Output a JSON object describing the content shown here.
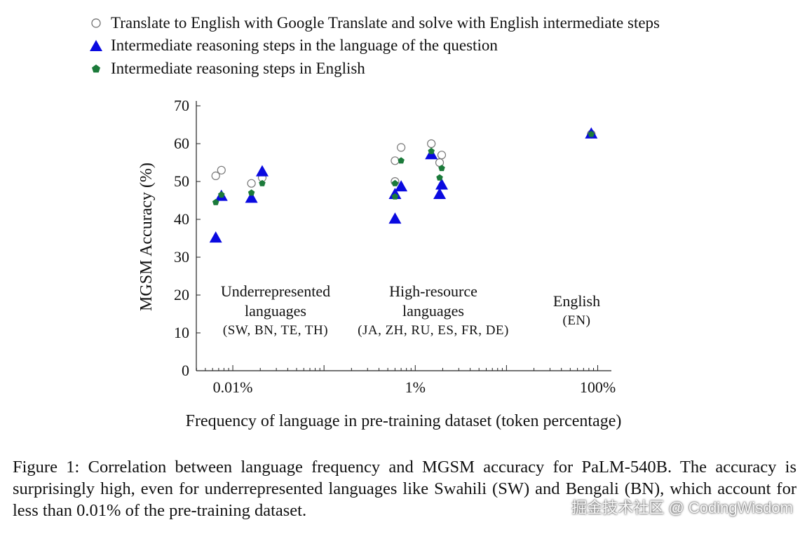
{
  "legend": [
    {
      "label": "Translate to English with Google Translate and solve with English intermediate steps",
      "marker": "open-circle"
    },
    {
      "label": "Intermediate reasoning steps in the language of the question",
      "marker": "triangle"
    },
    {
      "label": "Intermediate reasoning steps in English",
      "marker": "pentagon"
    }
  ],
  "colors": {
    "triangle": "#0a0ae0",
    "pentagon": "#1b7a3a",
    "circle_stroke": "#777777",
    "axis": "#222222"
  },
  "groups": [
    {
      "line1": "Underrepresented",
      "line2": "languages",
      "line3": "(SW, BN, TE, TH)"
    },
    {
      "line1": "High-resource",
      "line2": "languages",
      "line3": "(JA, ZH, RU, ES, FR, DE)"
    },
    {
      "line1": "English",
      "line2": "(EN)",
      "line3": ""
    }
  ],
  "xlabel": "Frequency of language in pre-training dataset (token percentage)",
  "caption": "Figure 1: Correlation between language frequency and MGSM accuracy for PaLM-540B. The accuracy is surprisingly high, even for underrepresented languages like Swahili (SW) and Bengali (BN), which account for less than 0.01% of the pre-training dataset.",
  "watermark": "掘金技术社区 @ CodingWisdom",
  "chart_data": {
    "type": "scatter",
    "xscale": "log",
    "ylabel": "MGSM Accuracy (%)",
    "xlabel": "Frequency of language in pre-training dataset (token percentage)",
    "ylim": [
      0,
      70
    ],
    "yticks": [
      0,
      10,
      20,
      30,
      40,
      50,
      60,
      70
    ],
    "xticks": [
      {
        "value": 0.01,
        "label": "0.01%"
      },
      {
        "value": 1,
        "label": "1%"
      },
      {
        "value": 100,
        "label": "100%"
      }
    ],
    "grid": false,
    "series": [
      {
        "name": "Translate to English with Google Translate and solve with English intermediate steps",
        "marker": "open-circle",
        "points": [
          {
            "x": 0.0065,
            "y": 51.5
          },
          {
            "x": 0.0075,
            "y": 53.0
          },
          {
            "x": 0.016,
            "y": 49.5
          },
          {
            "x": 0.021,
            "y": 51.0
          },
          {
            "x": 0.6,
            "y": 50.0
          },
          {
            "x": 0.6,
            "y": 55.5
          },
          {
            "x": 0.7,
            "y": 59.0
          },
          {
            "x": 1.5,
            "y": 60.0
          },
          {
            "x": 1.85,
            "y": 55.0
          },
          {
            "x": 1.95,
            "y": 57.0
          },
          {
            "x": 85,
            "y": 62.5
          }
        ]
      },
      {
        "name": "Intermediate reasoning steps in the language of the question",
        "marker": "triangle",
        "points": [
          {
            "x": 0.0065,
            "y": 35.0
          },
          {
            "x": 0.0075,
            "y": 46.0
          },
          {
            "x": 0.016,
            "y": 45.5
          },
          {
            "x": 0.021,
            "y": 52.5
          },
          {
            "x": 0.6,
            "y": 40.0
          },
          {
            "x": 0.6,
            "y": 46.5
          },
          {
            "x": 0.7,
            "y": 48.5
          },
          {
            "x": 1.5,
            "y": 57.0
          },
          {
            "x": 1.85,
            "y": 46.5
          },
          {
            "x": 1.95,
            "y": 49.0
          },
          {
            "x": 85,
            "y": 62.5
          }
        ]
      },
      {
        "name": "Intermediate reasoning steps in English",
        "marker": "pentagon",
        "points": [
          {
            "x": 0.0065,
            "y": 44.5
          },
          {
            "x": 0.0075,
            "y": 46.5
          },
          {
            "x": 0.016,
            "y": 47.0
          },
          {
            "x": 0.021,
            "y": 49.5
          },
          {
            "x": 0.6,
            "y": 49.5
          },
          {
            "x": 0.6,
            "y": 46.0
          },
          {
            "x": 0.7,
            "y": 55.5
          },
          {
            "x": 1.5,
            "y": 58.0
          },
          {
            "x": 1.85,
            "y": 51.0
          },
          {
            "x": 1.95,
            "y": 53.5
          },
          {
            "x": 85,
            "y": 62.5
          }
        ]
      }
    ]
  }
}
